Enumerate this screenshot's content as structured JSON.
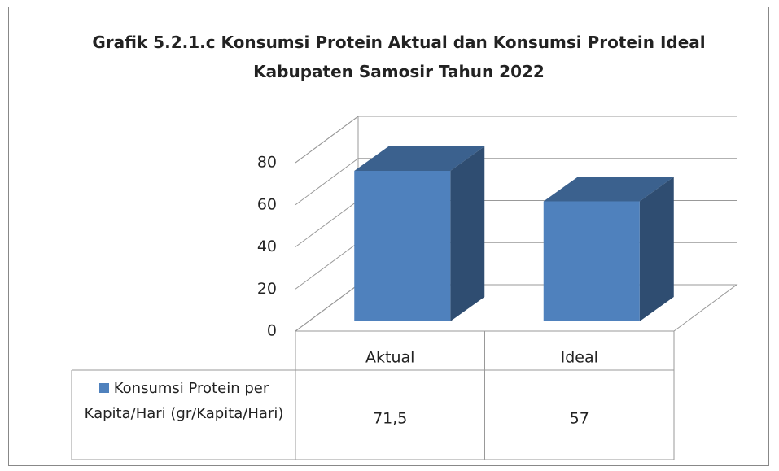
{
  "chart_data": {
    "type": "bar3d",
    "title": "Grafik 5.2.1.c Konsumsi  Protein Aktual dan Konsumsi Protein Ideal Kabupaten Samosir Tahun 2022",
    "categories": [
      "Aktual",
      "Ideal"
    ],
    "series": [
      {
        "name": "Konsumsi Protein per Kapita/Hari (gr/Kapita/Hari)",
        "color": "#4f81bd",
        "values": [
          71.5,
          57
        ],
        "value_labels": [
          "71,5",
          "57"
        ]
      }
    ],
    "ylim": [
      0,
      80
    ],
    "yticks": [
      0,
      20,
      40,
      60,
      80
    ],
    "grid": true,
    "data_table": true
  }
}
